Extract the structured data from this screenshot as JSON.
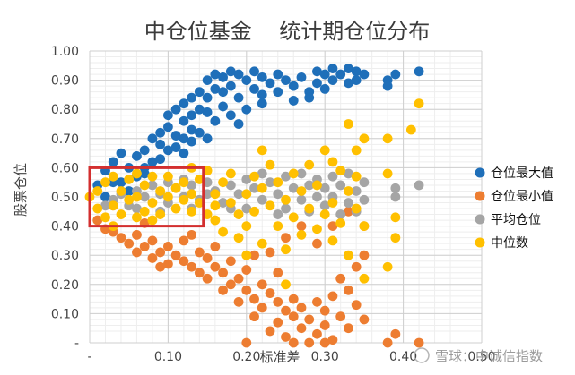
{
  "chart_data": {
    "type": "scatter",
    "title": "中仓位基金    统计期仓位分布",
    "xlabel": "标准差",
    "ylabel": "股票仓位",
    "xlim": [
      0,
      0.5
    ],
    "ylim": [
      0,
      1.0
    ],
    "x_ticks": [
      "-",
      "0.10",
      "0.20",
      "0.30",
      "0.40",
      "0.50"
    ],
    "y_ticks": [
      "-",
      "0.10",
      "0.20",
      "0.30",
      "0.40",
      "0.50",
      "0.60",
      "0.70",
      "0.80",
      "0.90",
      "1.00"
    ],
    "grid": true,
    "legend_position": "right",
    "highlight_box": {
      "x": [
        0.0,
        0.145
      ],
      "y": [
        0.4,
        0.6
      ],
      "color": "#d32f2f"
    },
    "series": [
      {
        "name": "仓位最大值",
        "color": "#1f6fb9",
        "points": [
          [
            0.01,
            0.54
          ],
          [
            0.02,
            0.59
          ],
          [
            0.03,
            0.62
          ],
          [
            0.04,
            0.65
          ],
          [
            0.04,
            0.55
          ],
          [
            0.05,
            0.6
          ],
          [
            0.05,
            0.52
          ],
          [
            0.06,
            0.64
          ],
          [
            0.06,
            0.57
          ],
          [
            0.07,
            0.66
          ],
          [
            0.07,
            0.6
          ],
          [
            0.08,
            0.7
          ],
          [
            0.08,
            0.62
          ],
          [
            0.09,
            0.72
          ],
          [
            0.09,
            0.68
          ],
          [
            0.1,
            0.78
          ],
          [
            0.1,
            0.74
          ],
          [
            0.1,
            0.66
          ],
          [
            0.11,
            0.8
          ],
          [
            0.11,
            0.71
          ],
          [
            0.12,
            0.82
          ],
          [
            0.12,
            0.76
          ],
          [
            0.12,
            0.7
          ],
          [
            0.13,
            0.84
          ],
          [
            0.13,
            0.78
          ],
          [
            0.13,
            0.73
          ],
          [
            0.14,
            0.86
          ],
          [
            0.14,
            0.8
          ],
          [
            0.15,
            0.9
          ],
          [
            0.15,
            0.84
          ],
          [
            0.15,
            0.79
          ],
          [
            0.16,
            0.92
          ],
          [
            0.16,
            0.87
          ],
          [
            0.17,
            0.91
          ],
          [
            0.17,
            0.86
          ],
          [
            0.18,
            0.93
          ],
          [
            0.18,
            0.88
          ],
          [
            0.19,
            0.92
          ],
          [
            0.19,
            0.84
          ],
          [
            0.2,
            0.9
          ],
          [
            0.21,
            0.93
          ],
          [
            0.21,
            0.87
          ],
          [
            0.22,
            0.91
          ],
          [
            0.22,
            0.85
          ],
          [
            0.23,
            0.89
          ],
          [
            0.24,
            0.92
          ],
          [
            0.24,
            0.86
          ],
          [
            0.25,
            0.9
          ],
          [
            0.26,
            0.88
          ],
          [
            0.27,
            0.91
          ],
          [
            0.28,
            0.86
          ],
          [
            0.29,
            0.93
          ],
          [
            0.29,
            0.89
          ],
          [
            0.3,
            0.92
          ],
          [
            0.3,
            0.87
          ],
          [
            0.31,
            0.94
          ],
          [
            0.31,
            0.9
          ],
          [
            0.32,
            0.92
          ],
          [
            0.33,
            0.94
          ],
          [
            0.33,
            0.89
          ],
          [
            0.34,
            0.93
          ],
          [
            0.34,
            0.9
          ],
          [
            0.35,
            0.92
          ],
          [
            0.16,
            0.76
          ],
          [
            0.18,
            0.78
          ],
          [
            0.2,
            0.8
          ],
          [
            0.14,
            0.72
          ],
          [
            0.12,
            0.65
          ],
          [
            0.09,
            0.63
          ],
          [
            0.07,
            0.58
          ],
          [
            0.19,
            0.75
          ],
          [
            0.15,
            0.7
          ],
          [
            0.22,
            0.82
          ],
          [
            0.26,
            0.83
          ],
          [
            0.28,
            0.84
          ],
          [
            0.38,
            0.9
          ],
          [
            0.39,
            0.92
          ],
          [
            0.42,
            0.93
          ],
          [
            0.38,
            0.88
          ],
          [
            0.02,
            0.5
          ],
          [
            0.03,
            0.55
          ],
          [
            0.11,
            0.67
          ],
          [
            0.13,
            0.69
          ],
          [
            0.17,
            0.81
          ]
        ]
      },
      {
        "name": "仓位最小值",
        "color": "#ed7d31",
        "points": [
          [
            0.01,
            0.42
          ],
          [
            0.02,
            0.39
          ],
          [
            0.03,
            0.38
          ],
          [
            0.04,
            0.36
          ],
          [
            0.05,
            0.34
          ],
          [
            0.06,
            0.37
          ],
          [
            0.06,
            0.31
          ],
          [
            0.07,
            0.33
          ],
          [
            0.08,
            0.35
          ],
          [
            0.08,
            0.29
          ],
          [
            0.09,
            0.31
          ],
          [
            0.1,
            0.33
          ],
          [
            0.1,
            0.27
          ],
          [
            0.11,
            0.3
          ],
          [
            0.12,
            0.28
          ],
          [
            0.12,
            0.35
          ],
          [
            0.13,
            0.26
          ],
          [
            0.14,
            0.31
          ],
          [
            0.14,
            0.24
          ],
          [
            0.15,
            0.29
          ],
          [
            0.15,
            0.22
          ],
          [
            0.16,
            0.26
          ],
          [
            0.16,
            0.33
          ],
          [
            0.17,
            0.24
          ],
          [
            0.17,
            0.18
          ],
          [
            0.18,
            0.28
          ],
          [
            0.18,
            0.2
          ],
          [
            0.19,
            0.22
          ],
          [
            0.19,
            0.14
          ],
          [
            0.2,
            0.25
          ],
          [
            0.2,
            0.18
          ],
          [
            0.21,
            0.15
          ],
          [
            0.21,
            0.09
          ],
          [
            0.22,
            0.2
          ],
          [
            0.22,
            0.12
          ],
          [
            0.23,
            0.17
          ],
          [
            0.23,
            0.04
          ],
          [
            0.24,
            0.14
          ],
          [
            0.24,
            0.07
          ],
          [
            0.25,
            0.11
          ],
          [
            0.25,
            0.02
          ],
          [
            0.26,
            0.09
          ],
          [
            0.26,
            0.15
          ],
          [
            0.27,
            0.05
          ],
          [
            0.27,
            0.12
          ],
          [
            0.28,
            0.08
          ],
          [
            0.28,
            0.0
          ],
          [
            0.29,
            0.14
          ],
          [
            0.29,
            0.03
          ],
          [
            0.3,
            0.11
          ],
          [
            0.3,
            0.06
          ],
          [
            0.31,
            0.01
          ],
          [
            0.31,
            0.16
          ],
          [
            0.32,
            0.09
          ],
          [
            0.32,
            0.22
          ],
          [
            0.33,
            0.05
          ],
          [
            0.33,
            0.18
          ],
          [
            0.34,
            0.13
          ],
          [
            0.34,
            0.26
          ],
          [
            0.35,
            0.08
          ],
          [
            0.35,
            0.3
          ],
          [
            0.29,
            0.34
          ],
          [
            0.31,
            0.4
          ],
          [
            0.33,
            0.45
          ],
          [
            0.27,
            0.4
          ],
          [
            0.25,
            0.36
          ],
          [
            0.23,
            0.31
          ],
          [
            0.35,
            0.4
          ],
          [
            0.38,
            0.0
          ],
          [
            0.39,
            0.03
          ],
          [
            0.42,
            0.0
          ],
          [
            0.2,
            0.0
          ],
          [
            0.26,
            0.0
          ],
          [
            0.3,
            0.0
          ],
          [
            0.03,
            0.47
          ],
          [
            0.07,
            0.41
          ],
          [
            0.09,
            0.26
          ],
          [
            0.13,
            0.37
          ],
          [
            0.21,
            0.3
          ],
          [
            0.24,
            0.24
          ]
        ]
      },
      {
        "name": "平均仓位",
        "color": "#a5a5a5",
        "points": [
          [
            0.02,
            0.47
          ],
          [
            0.03,
            0.49
          ],
          [
            0.04,
            0.51
          ],
          [
            0.05,
            0.47
          ],
          [
            0.06,
            0.52
          ],
          [
            0.07,
            0.5
          ],
          [
            0.08,
            0.54
          ],
          [
            0.09,
            0.51
          ],
          [
            0.1,
            0.55
          ],
          [
            0.1,
            0.48
          ],
          [
            0.11,
            0.53
          ],
          [
            0.12,
            0.56
          ],
          [
            0.12,
            0.5
          ],
          [
            0.13,
            0.54
          ],
          [
            0.14,
            0.49
          ],
          [
            0.15,
            0.55
          ],
          [
            0.16,
            0.52
          ],
          [
            0.17,
            0.48
          ],
          [
            0.18,
            0.54
          ],
          [
            0.19,
            0.51
          ],
          [
            0.2,
            0.56
          ],
          [
            0.2,
            0.46
          ],
          [
            0.21,
            0.53
          ],
          [
            0.22,
            0.58
          ],
          [
            0.22,
            0.49
          ],
          [
            0.23,
            0.55
          ],
          [
            0.24,
            0.51
          ],
          [
            0.25,
            0.57
          ],
          [
            0.25,
            0.46
          ],
          [
            0.26,
            0.53
          ],
          [
            0.27,
            0.49
          ],
          [
            0.27,
            0.58
          ],
          [
            0.28,
            0.54
          ],
          [
            0.29,
            0.5
          ],
          [
            0.29,
            0.56
          ],
          [
            0.3,
            0.47
          ],
          [
            0.3,
            0.53
          ],
          [
            0.31,
            0.57
          ],
          [
            0.31,
            0.5
          ],
          [
            0.32,
            0.44
          ],
          [
            0.32,
            0.54
          ],
          [
            0.33,
            0.48
          ],
          [
            0.33,
            0.58
          ],
          [
            0.34,
            0.52
          ],
          [
            0.34,
            0.45
          ],
          [
            0.35,
            0.55
          ],
          [
            0.35,
            0.49
          ],
          [
            0.39,
            0.5
          ],
          [
            0.42,
            0.54
          ],
          [
            0.39,
            0.53
          ],
          [
            0.18,
            0.46
          ],
          [
            0.24,
            0.44
          ],
          [
            0.28,
            0.45
          ],
          [
            0.15,
            0.51
          ],
          [
            0.13,
            0.46
          ],
          [
            0.09,
            0.45
          ],
          [
            0.06,
            0.46
          ]
        ]
      },
      {
        "name": "中位数",
        "color": "#ffc000",
        "points": [
          [
            0.0,
            0.5
          ],
          [
            0.01,
            0.46
          ],
          [
            0.01,
            0.52
          ],
          [
            0.02,
            0.43
          ],
          [
            0.02,
            0.55
          ],
          [
            0.03,
            0.47
          ],
          [
            0.03,
            0.57
          ],
          [
            0.04,
            0.44
          ],
          [
            0.04,
            0.52
          ],
          [
            0.05,
            0.49
          ],
          [
            0.05,
            0.56
          ],
          [
            0.06,
            0.43
          ],
          [
            0.06,
            0.5
          ],
          [
            0.07,
            0.54
          ],
          [
            0.07,
            0.45
          ],
          [
            0.08,
            0.57
          ],
          [
            0.08,
            0.48
          ],
          [
            0.09,
            0.52
          ],
          [
            0.09,
            0.44
          ],
          [
            0.1,
            0.5
          ],
          [
            0.1,
            0.57
          ],
          [
            0.11,
            0.46
          ],
          [
            0.11,
            0.53
          ],
          [
            0.12,
            0.49
          ],
          [
            0.12,
            0.55
          ],
          [
            0.13,
            0.45
          ],
          [
            0.13,
            0.51
          ],
          [
            0.14,
            0.48
          ],
          [
            0.14,
            0.56
          ],
          [
            0.15,
            0.44
          ],
          [
            0.15,
            0.59
          ],
          [
            0.16,
            0.51
          ],
          [
            0.16,
            0.42
          ],
          [
            0.17,
            0.55
          ],
          [
            0.17,
            0.38
          ],
          [
            0.18,
            0.48
          ],
          [
            0.18,
            0.58
          ],
          [
            0.19,
            0.44
          ],
          [
            0.19,
            0.36
          ],
          [
            0.2,
            0.51
          ],
          [
            0.2,
            0.4
          ],
          [
            0.21,
            0.57
          ],
          [
            0.21,
            0.45
          ],
          [
            0.22,
            0.34
          ],
          [
            0.22,
            0.53
          ],
          [
            0.23,
            0.47
          ],
          [
            0.23,
            0.61
          ],
          [
            0.24,
            0.4
          ],
          [
            0.24,
            0.55
          ],
          [
            0.25,
            0.49
          ],
          [
            0.25,
            0.32
          ],
          [
            0.26,
            0.58
          ],
          [
            0.26,
            0.43
          ],
          [
            0.27,
            0.52
          ],
          [
            0.27,
            0.37
          ],
          [
            0.28,
            0.61
          ],
          [
            0.28,
            0.46
          ],
          [
            0.29,
            0.39
          ],
          [
            0.29,
            0.54
          ],
          [
            0.3,
            0.44
          ],
          [
            0.3,
            0.66
          ],
          [
            0.31,
            0.48
          ],
          [
            0.31,
            0.35
          ],
          [
            0.32,
            0.41
          ],
          [
            0.32,
            0.59
          ],
          [
            0.33,
            0.52
          ],
          [
            0.33,
            0.3
          ],
          [
            0.34,
            0.66
          ],
          [
            0.34,
            0.46
          ],
          [
            0.35,
            0.7
          ],
          [
            0.35,
            0.4
          ],
          [
            0.33,
            0.75
          ],
          [
            0.31,
            0.62
          ],
          [
            0.34,
            0.57
          ],
          [
            0.38,
            0.58
          ],
          [
            0.38,
            0.7
          ],
          [
            0.39,
            0.43
          ],
          [
            0.39,
            0.36
          ],
          [
            0.42,
            0.82
          ],
          [
            0.41,
            0.73
          ],
          [
            0.22,
            0.66
          ],
          [
            0.13,
            0.6
          ],
          [
            0.06,
            0.58
          ],
          [
            0.03,
            0.4
          ],
          [
            0.08,
            0.42
          ],
          [
            0.16,
            0.47
          ],
          [
            0.2,
            0.3
          ],
          [
            0.25,
            0.2
          ],
          [
            0.38,
            0.26
          ],
          [
            0.35,
            0.22
          ]
        ]
      }
    ]
  },
  "watermark": "雪球：中诚信指数"
}
